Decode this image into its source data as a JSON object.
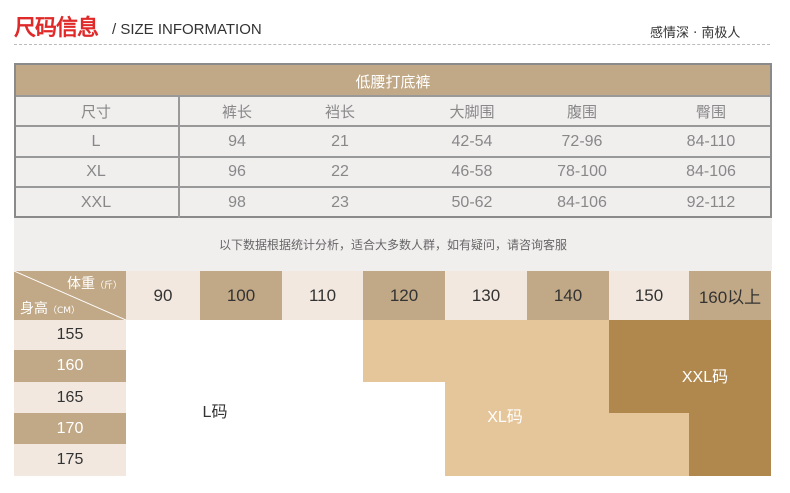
{
  "header": {
    "title": "尺码信息",
    "subtitle": "/ SIZE INFORMATION",
    "brand": "感情深 · 南极人"
  },
  "size_table": {
    "title": "低腰打底裤",
    "columns": [
      "尺寸",
      "裤长",
      "裆长",
      "大脚围",
      "腹围",
      "臀围"
    ],
    "rows": [
      [
        "L",
        "94",
        "21",
        "42-54",
        "72-96",
        "84-110"
      ],
      [
        "XL",
        "96",
        "22",
        "46-58",
        "78-100",
        "84-106"
      ],
      [
        "XXL",
        "98",
        "23",
        "50-62",
        "84-106",
        "92-112"
      ]
    ]
  },
  "note": "以下数据根据统计分析，适合大多数人群，如有疑问，请咨询客服",
  "guide": {
    "corner_weight": "体重",
    "corner_weight_unit": "（斤）",
    "corner_height": "身高",
    "corner_height_unit": "（CM）",
    "weights": [
      "90",
      "100",
      "110",
      "120",
      "130",
      "140",
      "150",
      "160以上"
    ],
    "heights": [
      "155",
      "160",
      "165",
      "170",
      "175"
    ],
    "zones": {
      "L": "L码",
      "XL": "XL码",
      "XXL": "XXL码"
    },
    "colors": {
      "L": "#ffffff",
      "XL": "#e5c59a",
      "XXL": "#b0884d",
      "header_dark": "#c1a886",
      "header_light": "#f2e8e0"
    }
  }
}
